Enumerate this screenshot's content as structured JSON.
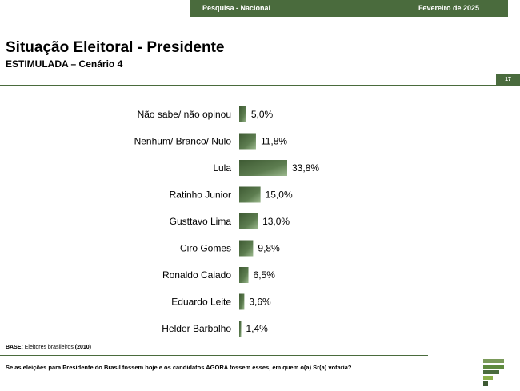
{
  "header": {
    "survey_label": "Pesquisa - Nacional",
    "date_label": "Fevereiro de 2025",
    "page_number": "17"
  },
  "title": "Situação Eleitoral - Presidente",
  "subtitle": "ESTIMULADA – Cenário 4",
  "footer": {
    "base_label": "BASE:",
    "base_text": "Eleitores brasileiros",
    "base_count": "(2010)",
    "question": "Se as eleições para Presidente do Brasil fossem hoje e os candidatos AGORA fossem esses, em quem o(a) Sr(a) votaria?"
  },
  "colors": {
    "brand_green": "#4a6b3d",
    "bar_dark": "#3e5a33",
    "bar_light": "#9cb98e"
  },
  "chart_data": {
    "type": "bar",
    "orientation": "horizontal",
    "categories": [
      "Não sabe/ não opinou",
      "Nenhum/ Branco/ Nulo",
      "Lula",
      "Ratinho Junior",
      "Gusttavo Lima",
      "Ciro Gomes",
      "Ronaldo Caiado",
      "Eduardo Leite",
      "Helder Barbalho"
    ],
    "values": [
      5.0,
      11.8,
      33.8,
      15.0,
      13.0,
      9.8,
      6.5,
      3.6,
      1.4
    ],
    "value_labels": [
      "5,0%",
      "11,8%",
      "33,8%",
      "15,0%",
      "13,0%",
      "9,8%",
      "6,5%",
      "3,6%",
      "1,4%"
    ],
    "unit": "%",
    "xlim": [
      0,
      33.8
    ],
    "grid": false,
    "legend": "none"
  }
}
